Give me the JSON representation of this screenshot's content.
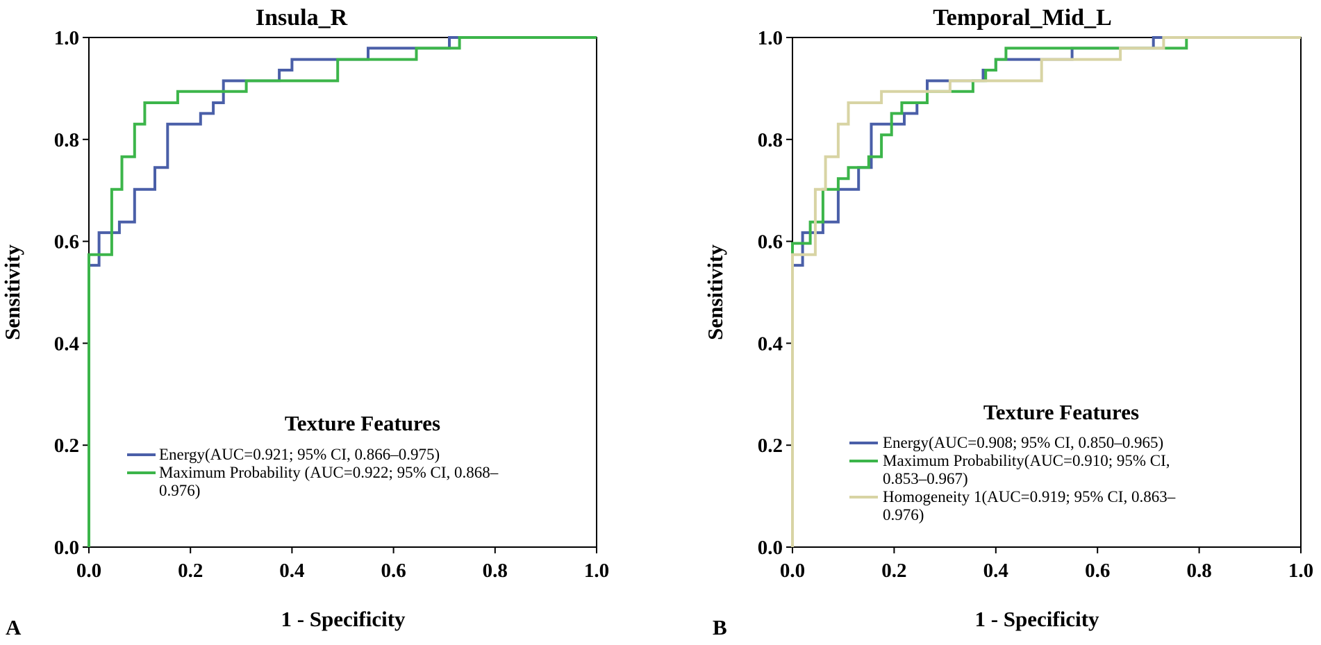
{
  "chart_data": [
    {
      "panel": "A",
      "type": "line",
      "title": "Insula_R",
      "xlabel": "1 - Specificity",
      "ylabel": "Sensitivity",
      "xlim": [
        0,
        1
      ],
      "ylim": [
        0,
        1
      ],
      "xticks": [
        "0.0",
        "0.2",
        "0.4",
        "0.6",
        "0.8",
        "1.0"
      ],
      "yticks": [
        "0.0",
        "0.2",
        "0.4",
        "0.6",
        "0.8",
        "1.0"
      ],
      "legend_title": "Texture Features",
      "legend_placement": "bottom-right",
      "series": [
        {
          "name": "Energy",
          "legend_lines": [
            "Energy(AUC=0.921; 95% CI, 0.866–0.975)"
          ],
          "color": "#4a5fa8",
          "points": [
            [
              0,
              0
            ],
            [
              0,
              0.553
            ],
            [
              0.02,
              0.553
            ],
            [
              0.02,
              0.617
            ],
            [
              0.06,
              0.617
            ],
            [
              0.06,
              0.638
            ],
            [
              0.09,
              0.638
            ],
            [
              0.09,
              0.702
            ],
            [
              0.13,
              0.702
            ],
            [
              0.13,
              0.745
            ],
            [
              0.155,
              0.745
            ],
            [
              0.155,
              0.83
            ],
            [
              0.22,
              0.83
            ],
            [
              0.22,
              0.851
            ],
            [
              0.245,
              0.851
            ],
            [
              0.245,
              0.872
            ],
            [
              0.265,
              0.872
            ],
            [
              0.265,
              0.915
            ],
            [
              0.31,
              0.915
            ],
            [
              0.31,
              0.915
            ],
            [
              0.375,
              0.915
            ],
            [
              0.375,
              0.936
            ],
            [
              0.4,
              0.936
            ],
            [
              0.4,
              0.957
            ],
            [
              0.55,
              0.957
            ],
            [
              0.55,
              0.979
            ],
            [
              0.71,
              0.979
            ],
            [
              0.71,
              1.0
            ],
            [
              1.0,
              1.0
            ]
          ]
        },
        {
          "name": "Maximum Probability",
          "legend_lines": [
            "Maximum Probability (AUC=0.922; 95% CI, 0.868–",
            "0.976)"
          ],
          "color": "#3cb54a",
          "points": [
            [
              0,
              0
            ],
            [
              0,
              0.574
            ],
            [
              0.045,
              0.574
            ],
            [
              0.045,
              0.702
            ],
            [
              0.065,
              0.702
            ],
            [
              0.065,
              0.766
            ],
            [
              0.09,
              0.766
            ],
            [
              0.09,
              0.83
            ],
            [
              0.11,
              0.83
            ],
            [
              0.11,
              0.872
            ],
            [
              0.175,
              0.872
            ],
            [
              0.175,
              0.894
            ],
            [
              0.31,
              0.894
            ],
            [
              0.31,
              0.915
            ],
            [
              0.49,
              0.915
            ],
            [
              0.49,
              0.957
            ],
            [
              0.645,
              0.957
            ],
            [
              0.645,
              0.979
            ],
            [
              0.73,
              0.979
            ],
            [
              0.73,
              1.0
            ],
            [
              1.0,
              1.0
            ]
          ]
        }
      ]
    },
    {
      "panel": "B",
      "type": "line",
      "title": "Temporal_Mid_L",
      "xlabel": "1 - Specificity",
      "ylabel": "Sensitivity",
      "xlim": [
        0,
        1
      ],
      "ylim": [
        0,
        1
      ],
      "xticks": [
        "0.0",
        "0.2",
        "0.4",
        "0.6",
        "0.8",
        "1.0"
      ],
      "yticks": [
        "0.0",
        "0.2",
        "0.4",
        "0.6",
        "0.8",
        "1.0"
      ],
      "legend_title": "Texture Features",
      "legend_placement": "bottom-right",
      "series": [
        {
          "name": "Energy",
          "legend_lines": [
            "Energy(AUC=0.908; 95% CI, 0.850–0.965)"
          ],
          "color": "#4a5fa8",
          "points": [
            [
              0,
              0
            ],
            [
              0,
              0.553
            ],
            [
              0.02,
              0.553
            ],
            [
              0.02,
              0.617
            ],
            [
              0.06,
              0.617
            ],
            [
              0.06,
              0.638
            ],
            [
              0.09,
              0.638
            ],
            [
              0.09,
              0.702
            ],
            [
              0.13,
              0.702
            ],
            [
              0.13,
              0.745
            ],
            [
              0.155,
              0.745
            ],
            [
              0.155,
              0.83
            ],
            [
              0.22,
              0.83
            ],
            [
              0.22,
              0.851
            ],
            [
              0.245,
              0.851
            ],
            [
              0.245,
              0.872
            ],
            [
              0.265,
              0.872
            ],
            [
              0.265,
              0.915
            ],
            [
              0.31,
              0.915
            ],
            [
              0.375,
              0.915
            ],
            [
              0.375,
              0.936
            ],
            [
              0.4,
              0.936
            ],
            [
              0.4,
              0.957
            ],
            [
              0.55,
              0.957
            ],
            [
              0.55,
              0.979
            ],
            [
              0.71,
              0.979
            ],
            [
              0.71,
              1.0
            ],
            [
              1.0,
              1.0
            ]
          ]
        },
        {
          "name": "Maximum Probability",
          "legend_lines": [
            "Maximum Probability(AUC=0.910; 95% CI,",
            "0.853–0.967)"
          ],
          "color": "#3cb54a",
          "points": [
            [
              0,
              0
            ],
            [
              0,
              0.596
            ],
            [
              0.035,
              0.596
            ],
            [
              0.035,
              0.638
            ],
            [
              0.06,
              0.638
            ],
            [
              0.06,
              0.702
            ],
            [
              0.09,
              0.702
            ],
            [
              0.09,
              0.723
            ],
            [
              0.11,
              0.723
            ],
            [
              0.11,
              0.745
            ],
            [
              0.15,
              0.745
            ],
            [
              0.15,
              0.766
            ],
            [
              0.175,
              0.766
            ],
            [
              0.175,
              0.809
            ],
            [
              0.195,
              0.809
            ],
            [
              0.195,
              0.851
            ],
            [
              0.215,
              0.851
            ],
            [
              0.215,
              0.872
            ],
            [
              0.265,
              0.872
            ],
            [
              0.265,
              0.894
            ],
            [
              0.33,
              0.894
            ],
            [
              0.33,
              0.894
            ],
            [
              0.355,
              0.894
            ],
            [
              0.355,
              0.915
            ],
            [
              0.38,
              0.915
            ],
            [
              0.38,
              0.936
            ],
            [
              0.4,
              0.936
            ],
            [
              0.4,
              0.957
            ],
            [
              0.42,
              0.957
            ],
            [
              0.42,
              0.979
            ],
            [
              0.56,
              0.979
            ],
            [
              0.56,
              0.979
            ],
            [
              0.775,
              0.979
            ],
            [
              0.775,
              1.0
            ],
            [
              1.0,
              1.0
            ]
          ]
        },
        {
          "name": "Homogeneity 1",
          "legend_lines": [
            "Homogeneity 1(AUC=0.919; 95% CI, 0.863–",
            "0.976)"
          ],
          "color": "#d8d4a4",
          "points": [
            [
              0,
              0
            ],
            [
              0,
              0.574
            ],
            [
              0.045,
              0.574
            ],
            [
              0.045,
              0.702
            ],
            [
              0.065,
              0.702
            ],
            [
              0.065,
              0.766
            ],
            [
              0.09,
              0.766
            ],
            [
              0.09,
              0.83
            ],
            [
              0.11,
              0.83
            ],
            [
              0.11,
              0.872
            ],
            [
              0.175,
              0.872
            ],
            [
              0.175,
              0.894
            ],
            [
              0.31,
              0.894
            ],
            [
              0.31,
              0.915
            ],
            [
              0.49,
              0.915
            ],
            [
              0.49,
              0.957
            ],
            [
              0.645,
              0.957
            ],
            [
              0.645,
              0.979
            ],
            [
              0.73,
              0.979
            ],
            [
              0.73,
              1.0
            ],
            [
              1.0,
              1.0
            ]
          ]
        }
      ]
    }
  ]
}
